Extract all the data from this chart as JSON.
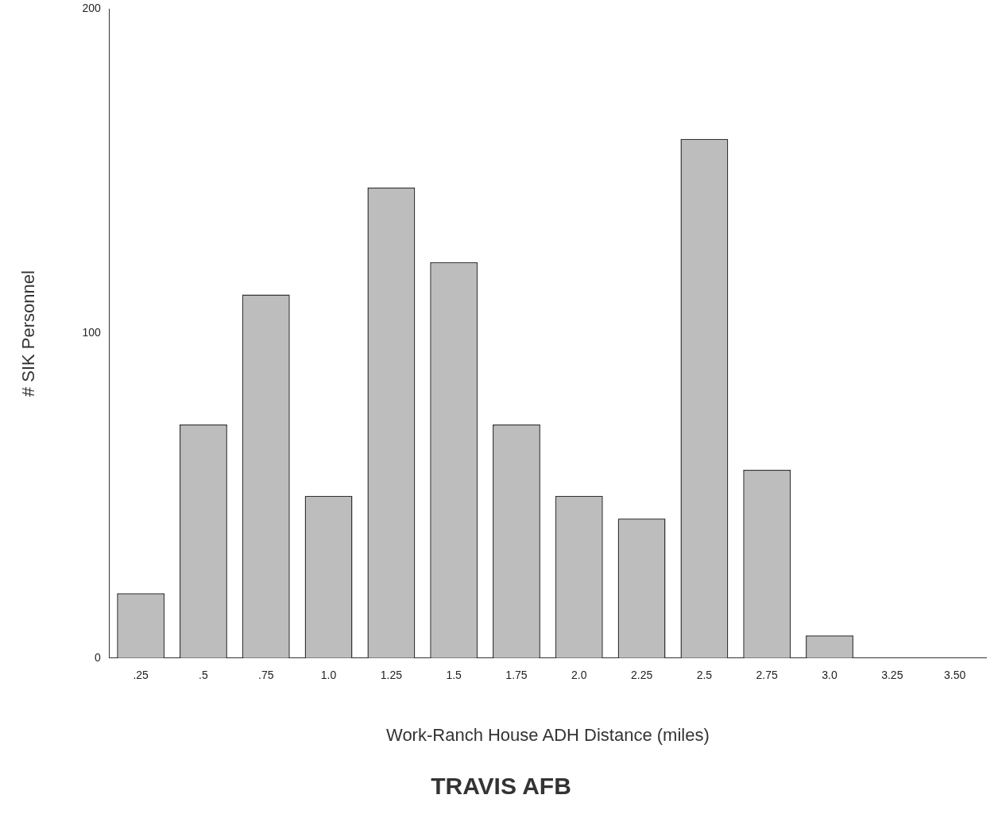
{
  "chart_data": {
    "type": "bar",
    "title": "TRAVIS AFB",
    "xlabel": "Work-Ranch House ADH Distance (miles)",
    "ylabel": "# SIK Personnel",
    "categories": [
      ".25",
      ".5",
      ".75",
      "1.0",
      "1.25",
      "1.5",
      "1.75",
      "2.0",
      "2.25",
      "2.5",
      "2.75",
      "3.0",
      "3.25",
      "3.50"
    ],
    "values": [
      20,
      72,
      112,
      50,
      145,
      122,
      72,
      50,
      43,
      160,
      58,
      7,
      0,
      0
    ],
    "color": "#bdbdbd",
    "ylim": [
      0,
      200
    ],
    "yticks": [
      0,
      100,
      200
    ],
    "grid": false,
    "legend": false
  }
}
